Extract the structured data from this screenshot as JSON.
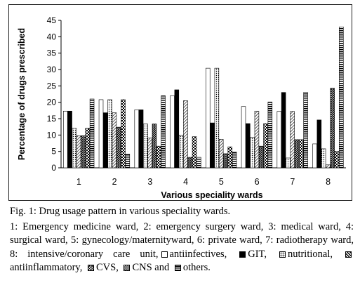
{
  "chart_data": {
    "type": "bar",
    "xlabel": "Various speciality wards",
    "ylabel": "Percentage of drugs prescribed",
    "ylim": [
      0,
      45
    ],
    "yticks": [
      0,
      5,
      10,
      15,
      20,
      25,
      30,
      35,
      40,
      45
    ],
    "categories": [
      "1",
      "2",
      "3",
      "4",
      "5",
      "6",
      "7",
      "8"
    ],
    "grid": false,
    "series": [
      {
        "name": "antiinfectives",
        "pattern": "white",
        "values": [
          17.3,
          20.8,
          17.7,
          22.0,
          30.4,
          18.7,
          17.2,
          7.3
        ]
      },
      {
        "name": "GIT",
        "pattern": "black",
        "values": [
          17.3,
          16.8,
          17.7,
          23.8,
          13.7,
          13.5,
          23.0,
          14.6
        ]
      },
      {
        "name": "nutritional",
        "pattern": "dots",
        "values": [
          12.1,
          20.8,
          13.4,
          10.0,
          30.4,
          9.3,
          3.0,
          5.8
        ]
      },
      {
        "name": "antiinflammatory",
        "pattern": "diagonal",
        "values": [
          9.8,
          16.8,
          9.1,
          20.5,
          8.7,
          17.3,
          17.2,
          0.9
        ]
      },
      {
        "name": "CVS",
        "pattern": "crosshatch",
        "values": [
          9.8,
          12.4,
          13.4,
          3.2,
          4.3,
          6.6,
          8.6,
          24.3
        ]
      },
      {
        "name": "CNS",
        "pattern": "checker",
        "values": [
          12.1,
          20.8,
          6.6,
          9.5,
          6.4,
          13.5,
          8.6,
          5.0
        ]
      },
      {
        "name": "others",
        "pattern": "hstripes",
        "values": [
          21.0,
          4.2,
          22.0,
          3.2,
          4.8,
          20.1,
          23.0,
          43.0
        ]
      }
    ]
  },
  "caption": {
    "title": "Fig. 1: Drug usage pattern in various speciality wards.",
    "body_main": "1: Emergency medicine ward, 2: emergency surgery ward, 3: medical ward, 4: surgical ward, 5: gynecology/maternityward, 6: private ward, 7: radiotherapy ward, 8: intensive/coronary care unit,",
    "legend": [
      {
        "label": "antiinfectives,",
        "icon": "white-square-icon"
      },
      {
        "label": "GIT,",
        "icon": "black-square-icon"
      },
      {
        "label": "nutritional,",
        "icon": "dotted-square-icon"
      },
      {
        "label": "antiinflammatory,",
        "icon": "diagonal-square-icon"
      },
      {
        "label": "CVS,",
        "icon": "crosshatch-square-icon"
      },
      {
        "label": "CNS and",
        "icon": "checker-square-icon"
      },
      {
        "label": "others.",
        "icon": "striped-square-icon"
      }
    ]
  }
}
